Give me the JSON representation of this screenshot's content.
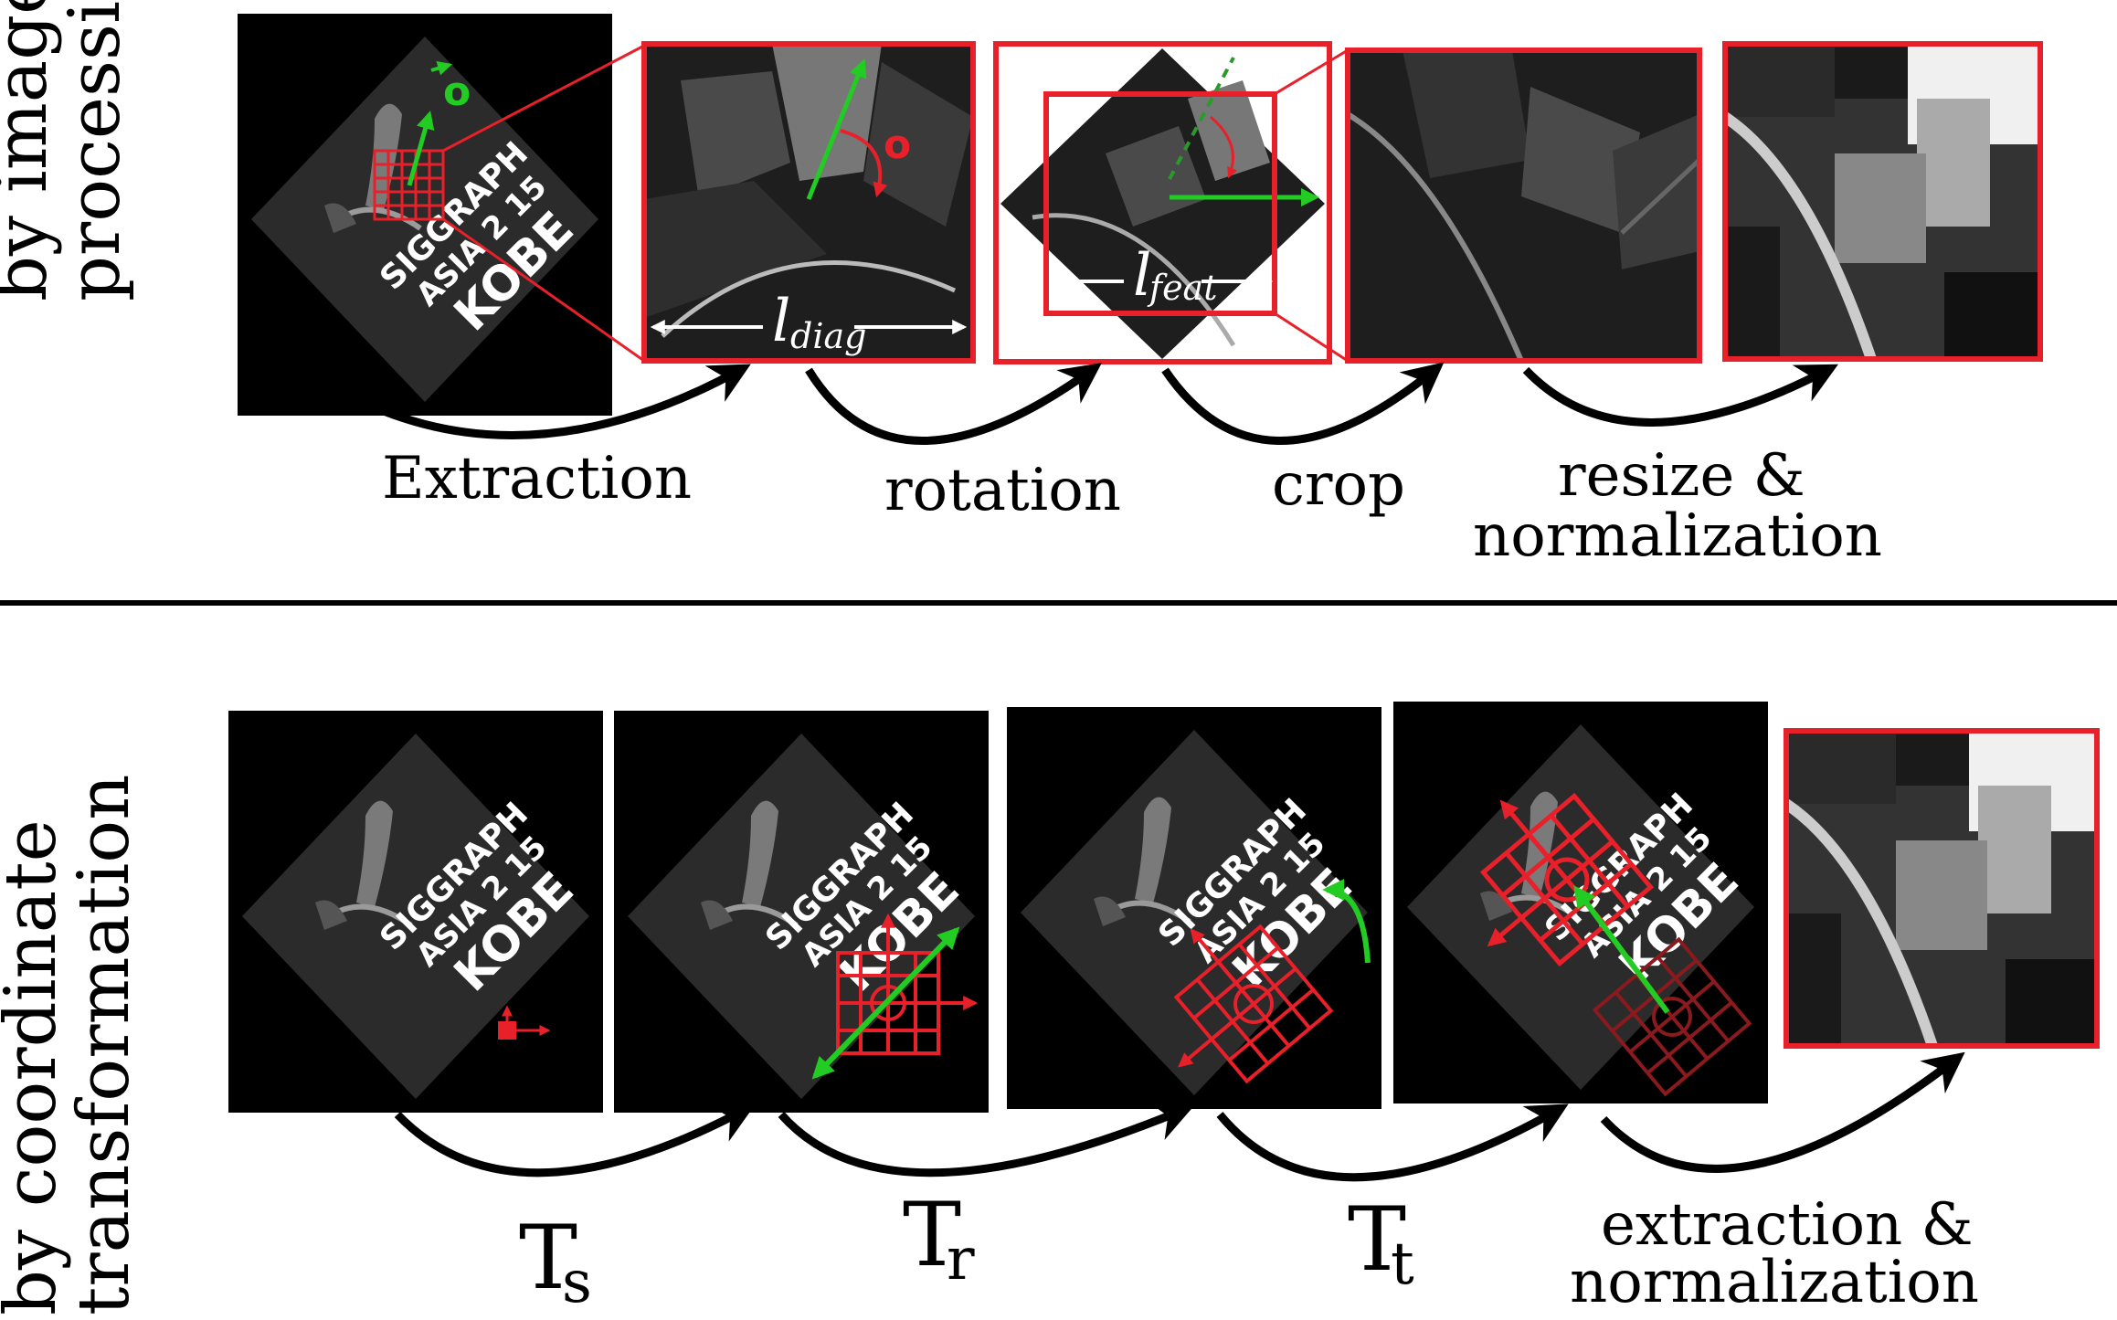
{
  "rows": {
    "top": {
      "side_label_line1": "by image",
      "side_label_line2": "processing",
      "steps": [
        {
          "label": "Extraction"
        },
        {
          "label": "rotation"
        },
        {
          "label": "crop"
        },
        {
          "label_line1": "resize &",
          "label_line2": "normalization"
        }
      ],
      "annotations": {
        "vector_o": "o",
        "angle_o": "o",
        "l_diag": "l",
        "l_diag_sub": "diag",
        "l_feat": "l",
        "l_feat_sub": "feat"
      }
    },
    "bottom": {
      "side_label_line1": "by coordinate",
      "side_label_line2": "transformation",
      "transforms": [
        {
          "base": "T",
          "sub": "s"
        },
        {
          "base": "T",
          "sub": "r"
        },
        {
          "base": "T",
          "sub": "t"
        }
      ],
      "final_step_line1": "extraction &",
      "final_step_line2": "normalization"
    }
  },
  "image_text": {
    "line1": "SIGGRAPH",
    "line2": "ASIA 2 15",
    "line3": "KOBE"
  },
  "colors": {
    "highlight_red": "#e8202a",
    "vector_green": "#22cc22",
    "separator": "#000000"
  }
}
